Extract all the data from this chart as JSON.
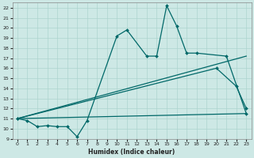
{
  "xlabel": "Humidex (Indice chaleur)",
  "xlim": [
    -0.5,
    23.5
  ],
  "ylim": [
    9,
    22.5
  ],
  "yticks": [
    9,
    10,
    11,
    12,
    13,
    14,
    15,
    16,
    17,
    18,
    19,
    20,
    21,
    22
  ],
  "xticks": [
    0,
    1,
    2,
    3,
    4,
    5,
    6,
    7,
    8,
    9,
    10,
    11,
    12,
    13,
    14,
    15,
    16,
    17,
    18,
    19,
    20,
    21,
    22,
    23
  ],
  "background_color": "#cde8e5",
  "grid_color": "#add4cf",
  "line_color": "#006868",
  "series": [
    {
      "x": [
        0,
        1,
        2,
        3,
        4,
        5,
        6,
        7,
        10,
        11,
        13,
        14,
        15,
        16,
        17,
        18,
        21,
        23
      ],
      "y": [
        11.0,
        10.8,
        10.2,
        10.3,
        10.2,
        10.2,
        9.2,
        10.8,
        19.2,
        19.8,
        17.2,
        17.2,
        22.2,
        20.2,
        17.5,
        17.5,
        17.2,
        11.5
      ],
      "marker": true
    },
    {
      "x": [
        0,
        20,
        22,
        23
      ],
      "y": [
        11.0,
        16.0,
        14.2,
        12.0
      ],
      "marker": true
    },
    {
      "x": [
        0,
        23
      ],
      "y": [
        11.0,
        17.2
      ],
      "marker": false
    },
    {
      "x": [
        0,
        23
      ],
      "y": [
        11.0,
        11.5
      ],
      "marker": false
    }
  ]
}
